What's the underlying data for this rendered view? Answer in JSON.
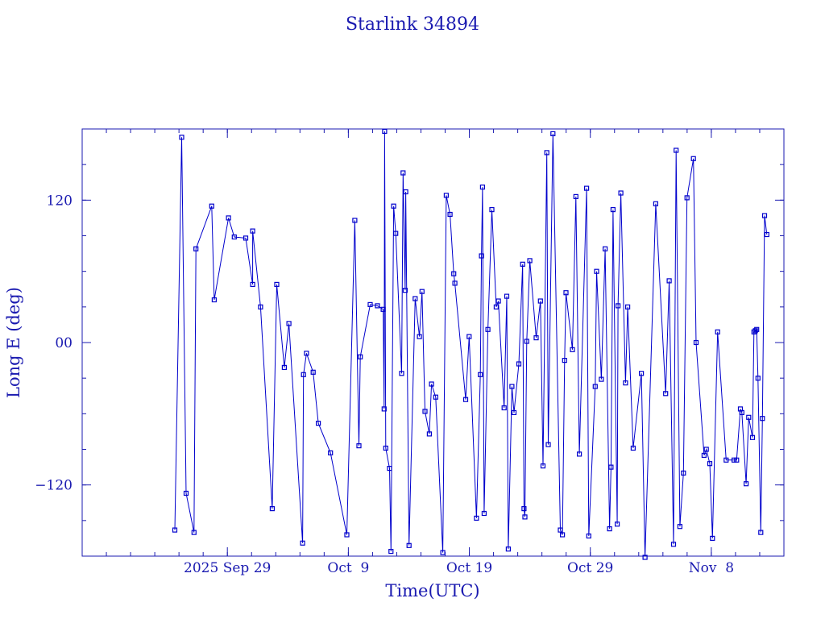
{
  "chart_data": {
    "type": "line",
    "title": "Starlink 34894",
    "xlabel": "Time(UTC)",
    "ylabel": "Long E (deg)",
    "xlim": [
      "2025-09-17",
      "2025-11-14"
    ],
    "ylim": [
      -180,
      180
    ],
    "x_ticks": [
      {
        "label": "2025 Sep 29",
        "date": "2025-09-29"
      },
      {
        "label": "Oct  9",
        "date": "2025-10-09"
      },
      {
        "label": "Oct 19",
        "date": "2025-10-19"
      },
      {
        "label": "Oct 29",
        "date": "2025-10-29"
      },
      {
        "label": "Nov  8",
        "date": "2025-11-08"
      }
    ],
    "y_ticks": [
      {
        "label": "−120",
        "value": -120
      },
      {
        "label": "00",
        "value": 0
      },
      {
        "label": "120",
        "value": 120
      }
    ],
    "grid": false,
    "series": [
      {
        "color": "#0000cc",
        "points": [
          {
            "x": "2025-09-24T15:50",
            "y": -158
          },
          {
            "x": "2025-09-25T05:20",
            "y": 173
          },
          {
            "x": "2025-09-25T14:10",
            "y": -127
          },
          {
            "x": "2025-09-26T05:50",
            "y": -160
          },
          {
            "x": "2025-09-26T09:40",
            "y": 79
          },
          {
            "x": "2025-09-27T17:00",
            "y": 115
          },
          {
            "x": "2025-09-27T22:00",
            "y": 36
          },
          {
            "x": "2025-09-29T02:10",
            "y": 105
          },
          {
            "x": "2025-09-29T13:40",
            "y": 89
          },
          {
            "x": "2025-09-30T12:30",
            "y": 88
          },
          {
            "x": "2025-09-31T02:10",
            "y": 49
          },
          {
            "x": "2025-10-01T02:10",
            "y": 94
          },
          {
            "x": "2025-10-01T17:50",
            "y": 30
          },
          {
            "x": "2025-10-02T17:00",
            "y": -140
          },
          {
            "x": "2025-10-03T02:00",
            "y": 49
          },
          {
            "x": "2025-10-03T17:00",
            "y": -21
          },
          {
            "x": "2025-10-04T02:10",
            "y": 16
          },
          {
            "x": "2025-10-05T05:20",
            "y": -169
          },
          {
            "x": "2025-10-05T07:00",
            "y": -27
          },
          {
            "x": "2025-10-05T13:00",
            "y": -9
          },
          {
            "x": "2025-10-06T02:10",
            "y": -25
          },
          {
            "x": "2025-10-06T12:30",
            "y": -68
          },
          {
            "x": "2025-10-07T12:30",
            "y": -93
          },
          {
            "x": "2025-10-08T21:00",
            "y": -162
          },
          {
            "x": "2025-10-09T12:50",
            "y": 103
          },
          {
            "x": "2025-10-09T21:00",
            "y": -87
          },
          {
            "x": "2025-10-09T23:40",
            "y": -12
          },
          {
            "x": "2025-10-10T19:20",
            "y": 32
          },
          {
            "x": "2025-10-11T09:40",
            "y": 31
          },
          {
            "x": "2025-10-11T21:00",
            "y": 28
          },
          {
            "x": "2025-10-11T23:00",
            "y": -56
          },
          {
            "x": "2025-10-12T00:00",
            "y": 178
          },
          {
            "x": "2025-10-12T02:10",
            "y": -89
          },
          {
            "x": "2025-10-12T09:40",
            "y": -106
          },
          {
            "x": "2025-10-12T12:30",
            "y": -176
          },
          {
            "x": "2025-10-12T17:50",
            "y": 115
          },
          {
            "x": "2025-10-12T22:00",
            "y": 92
          },
          {
            "x": "2025-10-13T09:40",
            "y": -26
          },
          {
            "x": "2025-10-13T12:30",
            "y": 143
          },
          {
            "x": "2025-10-13T16:40",
            "y": 44
          },
          {
            "x": "2025-10-13T17:50",
            "y": 127
          },
          {
            "x": "2025-10-14T00:20",
            "y": -171
          },
          {
            "x": "2025-10-14T12:30",
            "y": 37
          },
          {
            "x": "2025-10-14T21:00",
            "y": 5
          },
          {
            "x": "2025-10-15T02:10",
            "y": 43
          },
          {
            "x": "2025-10-15T08:00",
            "y": -58
          },
          {
            "x": "2025-10-15T16:40",
            "y": -77
          },
          {
            "x": "2025-10-15T21:00",
            "y": -35
          },
          {
            "x": "2025-10-16T05:20",
            "y": -46
          },
          {
            "x": "2025-10-16T19:20",
            "y": -177
          },
          {
            "x": "2025-10-17T02:10",
            "y": 124
          },
          {
            "x": "2025-10-17T09:40",
            "y": 108
          },
          {
            "x": "2025-10-17T17:00",
            "y": 58
          },
          {
            "x": "2025-10-17T19:20",
            "y": 50
          },
          {
            "x": "2025-10-18T16:40",
            "y": -48
          },
          {
            "x": "2025-10-18T23:40",
            "y": 5
          },
          {
            "x": "2025-10-19T14:10",
            "y": -148
          },
          {
            "x": "2025-10-19T21:50",
            "y": -27
          },
          {
            "x": "2025-10-20T00:00",
            "y": 73
          },
          {
            "x": "2025-10-20T02:10",
            "y": 131
          },
          {
            "x": "2025-10-20T05:20",
            "y": -144
          },
          {
            "x": "2025-10-20T12:50",
            "y": 11
          },
          {
            "x": "2025-10-20T20:40",
            "y": 112
          },
          {
            "x": "2025-10-21T05:20",
            "y": 30
          },
          {
            "x": "2025-10-21T09:40",
            "y": 35
          },
          {
            "x": "2025-10-21T21:00",
            "y": -55
          },
          {
            "x": "2025-10-22T02:10",
            "y": 39
          },
          {
            "x": "2025-10-22T05:20",
            "y": -174
          },
          {
            "x": "2025-10-22T12:30",
            "y": -37
          },
          {
            "x": "2025-10-22T16:40",
            "y": -59
          },
          {
            "x": "2025-10-23T02:10",
            "y": -18
          },
          {
            "x": "2025-10-23T09:40",
            "y": 66
          },
          {
            "x": "2025-10-23T12:30",
            "y": -140
          },
          {
            "x": "2025-10-23T14:10",
            "y": -147
          },
          {
            "x": "2025-10-23T17:50",
            "y": 1
          },
          {
            "x": "2025-10-24T00:00",
            "y": 69
          },
          {
            "x": "2025-10-24T12:30",
            "y": 4
          },
          {
            "x": "2025-10-24T21:00",
            "y": 35
          },
          {
            "x": "2025-10-25T02:10",
            "y": -104
          },
          {
            "x": "2025-10-25T09:40",
            "y": 160
          },
          {
            "x": "2025-10-25T12:30",
            "y": -86
          },
          {
            "x": "2025-10-25T21:50",
            "y": 176
          },
          {
            "x": "2025-10-26T12:30",
            "y": -158
          },
          {
            "x": "2025-10-26T16:40",
            "y": -162
          },
          {
            "x": "2025-10-26T21:00",
            "y": -15
          },
          {
            "x": "2025-10-26T23:40",
            "y": 42
          },
          {
            "x": "2025-10-27T12:30",
            "y": -6
          },
          {
            "x": "2025-10-27T19:20",
            "y": 123
          },
          {
            "x": "2025-10-28T02:10",
            "y": -94
          },
          {
            "x": "2025-10-28T16:40",
            "y": 130
          },
          {
            "x": "2025-10-28T21:00",
            "y": -163
          },
          {
            "x": "2025-10-29T09:40",
            "y": -37
          },
          {
            "x": "2025-10-29T12:30",
            "y": 60
          },
          {
            "x": "2025-10-29T21:50",
            "y": -31
          },
          {
            "x": "2025-10-30T05:20",
            "y": 79
          },
          {
            "x": "2025-10-30T14:10",
            "y": -157
          },
          {
            "x": "2025-10-30T17:00",
            "y": -105
          },
          {
            "x": "2025-10-30T21:00",
            "y": 112
          },
          {
            "x": "2025-10-31T05:20",
            "y": -153
          },
          {
            "x": "2025-10-31T07:00",
            "y": 31
          },
          {
            "x": "2025-10-31T12:30",
            "y": 126
          },
          {
            "x": "2025-10-31T21:50",
            "y": -34
          },
          {
            "x": "2025-11-01T02:10",
            "y": 30
          },
          {
            "x": "2025-11-01T13:00",
            "y": -89
          },
          {
            "x": "2025-11-02T05:20",
            "y": -26
          },
          {
            "x": "2025-11-02T12:30",
            "y": -181
          },
          {
            "x": "2025-11-03T09:40",
            "y": 117
          },
          {
            "x": "2025-11-04T05:20",
            "y": -43
          },
          {
            "x": "2025-11-04T12:30",
            "y": 52
          },
          {
            "x": "2025-11-04T21:00",
            "y": -170
          },
          {
            "x": "2025-11-05T02:10",
            "y": 162
          },
          {
            "x": "2025-11-05T09:40",
            "y": -155
          },
          {
            "x": "2025-11-05T16:40",
            "y": -110
          },
          {
            "x": "2025-11-05T23:40",
            "y": 122
          },
          {
            "x": "2025-11-06T12:30",
            "y": 155
          },
          {
            "x": "2025-11-06T17:50",
            "y": 0
          },
          {
            "x": "2025-11-07T09:40",
            "y": -95
          },
          {
            "x": "2025-11-07T14:10",
            "y": -90
          },
          {
            "x": "2025-11-07T21:00",
            "y": -102
          },
          {
            "x": "2025-11-08T02:10",
            "y": -165
          },
          {
            "x": "2025-11-08T12:30",
            "y": 9
          },
          {
            "x": "2025-11-09T05:20",
            "y": -99
          },
          {
            "x": "2025-11-09T21:00",
            "y": -99
          },
          {
            "x": "2025-11-10T02:10",
            "y": -99
          },
          {
            "x": "2025-11-10T09:40",
            "y": -56
          },
          {
            "x": "2025-11-10T12:30",
            "y": -59
          },
          {
            "x": "2025-11-10T21:00",
            "y": -119
          },
          {
            "x": "2025-11-11T02:10",
            "y": -63
          },
          {
            "x": "2025-11-11T09:40",
            "y": -80
          },
          {
            "x": "2025-11-11T12:30",
            "y": 9
          },
          {
            "x": "2025-11-11T15:30",
            "y": 10
          },
          {
            "x": "2025-11-11T18:00",
            "y": 11
          },
          {
            "x": "2025-11-11T20:30",
            "y": -30
          },
          {
            "x": "2025-11-12T02:10",
            "y": -160
          },
          {
            "x": "2025-11-12T05:20",
            "y": -64
          },
          {
            "x": "2025-11-12T09:40",
            "y": 107
          },
          {
            "x": "2025-11-12T14:10",
            "y": 91
          }
        ]
      }
    ]
  }
}
